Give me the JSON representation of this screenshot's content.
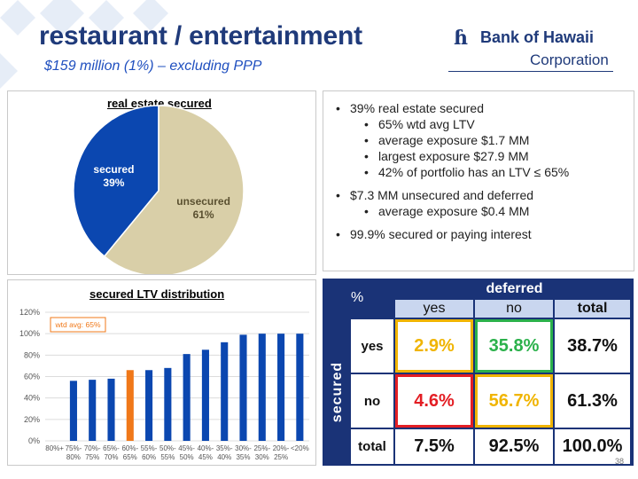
{
  "header": {
    "title": "restaurant / entertainment",
    "subtitle": "$159 million (1%) – excluding PPP"
  },
  "logo": {
    "name": "Bank of Hawaii",
    "corporation": "Corporation",
    "mark": "ɦ"
  },
  "pie": {
    "title": "real estate secured"
  },
  "bullets": {
    "b1": "39% real estate secured",
    "b1a": "65% wtd avg LTV",
    "b1b": "average exposure $1.7 MM",
    "b1c": "largest exposure $27.9 MM",
    "b1d": "42% of portfolio has an LTV ≤ 65%",
    "b2": "$7.3 MM unsecured and deferred",
    "b2a": "average exposure $0.4 MM",
    "b3": "99.9% secured or paying interest"
  },
  "bar": {
    "title": "secured LTV distribution",
    "annotation": "wtd avg: 65%"
  },
  "table": {
    "corner": "%",
    "col_group": "deferred",
    "row_group": "secured",
    "col_yes": "yes",
    "col_no": "no",
    "col_total": "total",
    "row_yes": "yes",
    "row_no": "no",
    "row_total": "total",
    "yes_yes": "2.9%",
    "yes_no": "35.8%",
    "yes_total": "38.7%",
    "no_yes": "4.6%",
    "no_no": "56.7%",
    "no_total": "61.3%",
    "total_yes": "7.5%",
    "total_no": "92.5%",
    "total_total": "100.0%"
  },
  "page_number": "38",
  "colors": {
    "title_blue": "#1f3a7a",
    "secured": "#0b47b0",
    "unsecured": "#d9cfa8",
    "bar": "#0b47b0",
    "bar_highlight": "#f07819",
    "table_bg": "#1a3377",
    "yellow": "#f0b400",
    "green": "#2bb14b",
    "red": "#e31e24"
  },
  "chart_data": [
    {
      "type": "pie",
      "title": "real estate secured",
      "slices": [
        {
          "label": "secured",
          "value_label": "39%",
          "value": 39,
          "color": "#0b47b0"
        },
        {
          "label": "unsecured",
          "value_label": "61%",
          "value": 61,
          "color": "#d9cfa8"
        }
      ]
    },
    {
      "type": "bar",
      "title": "secured LTV distribution",
      "categories": [
        [
          "80%+",
          ""
        ],
        [
          "75%-",
          "80%"
        ],
        [
          "70%-",
          "75%"
        ],
        [
          "65%-",
          "70%"
        ],
        [
          "60%-",
          "65%"
        ],
        [
          "55%-",
          "60%"
        ],
        [
          "50%-",
          "55%"
        ],
        [
          "45%-",
          "50%"
        ],
        [
          "40%-",
          "45%"
        ],
        [
          "35%-",
          "40%"
        ],
        [
          "30%-",
          "35%"
        ],
        [
          "25%-",
          "30%"
        ],
        [
          "20%-",
          "25%"
        ],
        [
          "<20%",
          ""
        ]
      ],
      "values": [
        0,
        56,
        57,
        58,
        66,
        66,
        68,
        81,
        85,
        92,
        99,
        100,
        100,
        100
      ],
      "highlight_index": 4,
      "ylim": [
        0,
        120
      ],
      "yticks": [
        0,
        20,
        40,
        60,
        80,
        100,
        120
      ],
      "ytick_labels": [
        "0%",
        "20%",
        "40%",
        "60%",
        "80%",
        "100%",
        "120%"
      ],
      "grid": true,
      "annotation": "wtd avg: 65%"
    }
  ]
}
